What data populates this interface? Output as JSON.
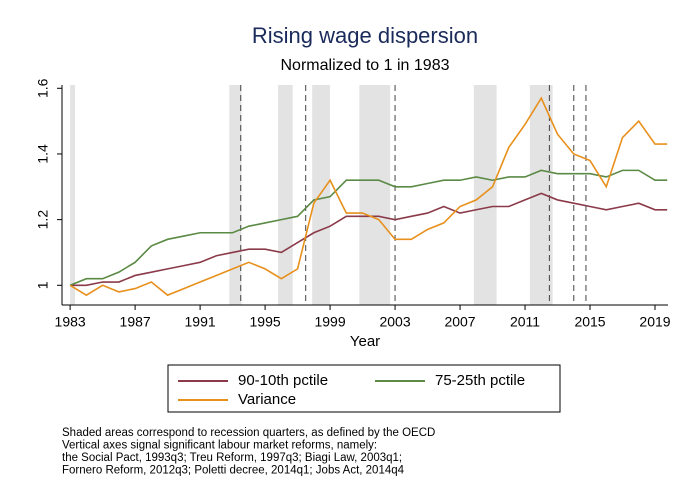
{
  "chart_data": {
    "type": "line",
    "title": "Rising wage dispersion",
    "subtitle": "Normalized to 1 in 1983",
    "x_label": "Year",
    "x": [
      1983,
      1984,
      1985,
      1986,
      1987,
      1988,
      1989,
      1990,
      1991,
      1992,
      1993,
      1994,
      1995,
      1996,
      1997,
      1998,
      1999,
      2000,
      2001,
      2002,
      2003,
      2004,
      2005,
      2006,
      2007,
      2008,
      2009,
      2010,
      2011,
      2012,
      2013,
      2014,
      2015,
      2016,
      2017,
      2018,
      2019,
      2019.75
    ],
    "series": [
      {
        "name": "90-10th pctile",
        "color": "#8b3a4a",
        "values": [
          1.0,
          1.0,
          1.01,
          1.01,
          1.03,
          1.04,
          1.05,
          1.06,
          1.07,
          1.09,
          1.1,
          1.11,
          1.11,
          1.1,
          1.13,
          1.16,
          1.18,
          1.21,
          1.21,
          1.21,
          1.2,
          1.21,
          1.22,
          1.24,
          1.22,
          1.23,
          1.24,
          1.24,
          1.26,
          1.28,
          1.26,
          1.25,
          1.24,
          1.23,
          1.24,
          1.25,
          1.23,
          1.23
        ]
      },
      {
        "name": "75-25th pctile",
        "color": "#5b8a45",
        "values": [
          1.0,
          1.02,
          1.02,
          1.04,
          1.07,
          1.12,
          1.14,
          1.15,
          1.16,
          1.16,
          1.16,
          1.18,
          1.19,
          1.2,
          1.21,
          1.26,
          1.27,
          1.32,
          1.32,
          1.32,
          1.3,
          1.3,
          1.31,
          1.32,
          1.32,
          1.33,
          1.32,
          1.33,
          1.33,
          1.35,
          1.34,
          1.34,
          1.34,
          1.33,
          1.35,
          1.35,
          1.32,
          1.32
        ]
      },
      {
        "name": "Variance",
        "color": "#e8901c",
        "values": [
          1.0,
          0.97,
          1.0,
          0.98,
          0.99,
          1.01,
          0.97,
          0.99,
          1.01,
          1.03,
          1.05,
          1.07,
          1.05,
          1.02,
          1.05,
          1.25,
          1.32,
          1.22,
          1.22,
          1.2,
          1.14,
          1.14,
          1.17,
          1.19,
          1.24,
          1.26,
          1.3,
          1.42,
          1.49,
          1.57,
          1.46,
          1.4,
          1.38,
          1.3,
          1.45,
          1.5,
          1.43,
          1.43
        ]
      }
    ],
    "recessions": [
      [
        1983.0,
        1983.3
      ],
      [
        1992.8,
        1993.55
      ],
      [
        1995.8,
        1996.7
      ],
      [
        1997.9,
        1999.0
      ],
      [
        2000.8,
        2002.7
      ],
      [
        2007.85,
        2009.25
      ],
      [
        2011.3,
        2012.7
      ]
    ],
    "reforms": [
      1993.5,
      1997.5,
      2003.0,
      2012.5,
      2014.0,
      2014.75
    ],
    "xlim": [
      1982.5,
      2019.8
    ],
    "ylim": [
      0.94,
      1.61
    ],
    "xticks": [
      1983,
      1987,
      1991,
      1995,
      1999,
      2003,
      2007,
      2011,
      2015,
      2019
    ],
    "yticks": [
      1,
      1.2,
      1.4,
      1.6
    ],
    "notes": [
      "Shaded areas correspond to recession quarters, as defined by the OECD",
      "Vertical axes signal significant labour market reforms, namely:",
      "the Social Pact, 1993q3; Treu Reform, 1997q3; Biagi Law, 2003q1;",
      "Fornero Reform, 2012q3; Poletti decree, 2014q1; Jobs Act, 2014q4"
    ]
  }
}
